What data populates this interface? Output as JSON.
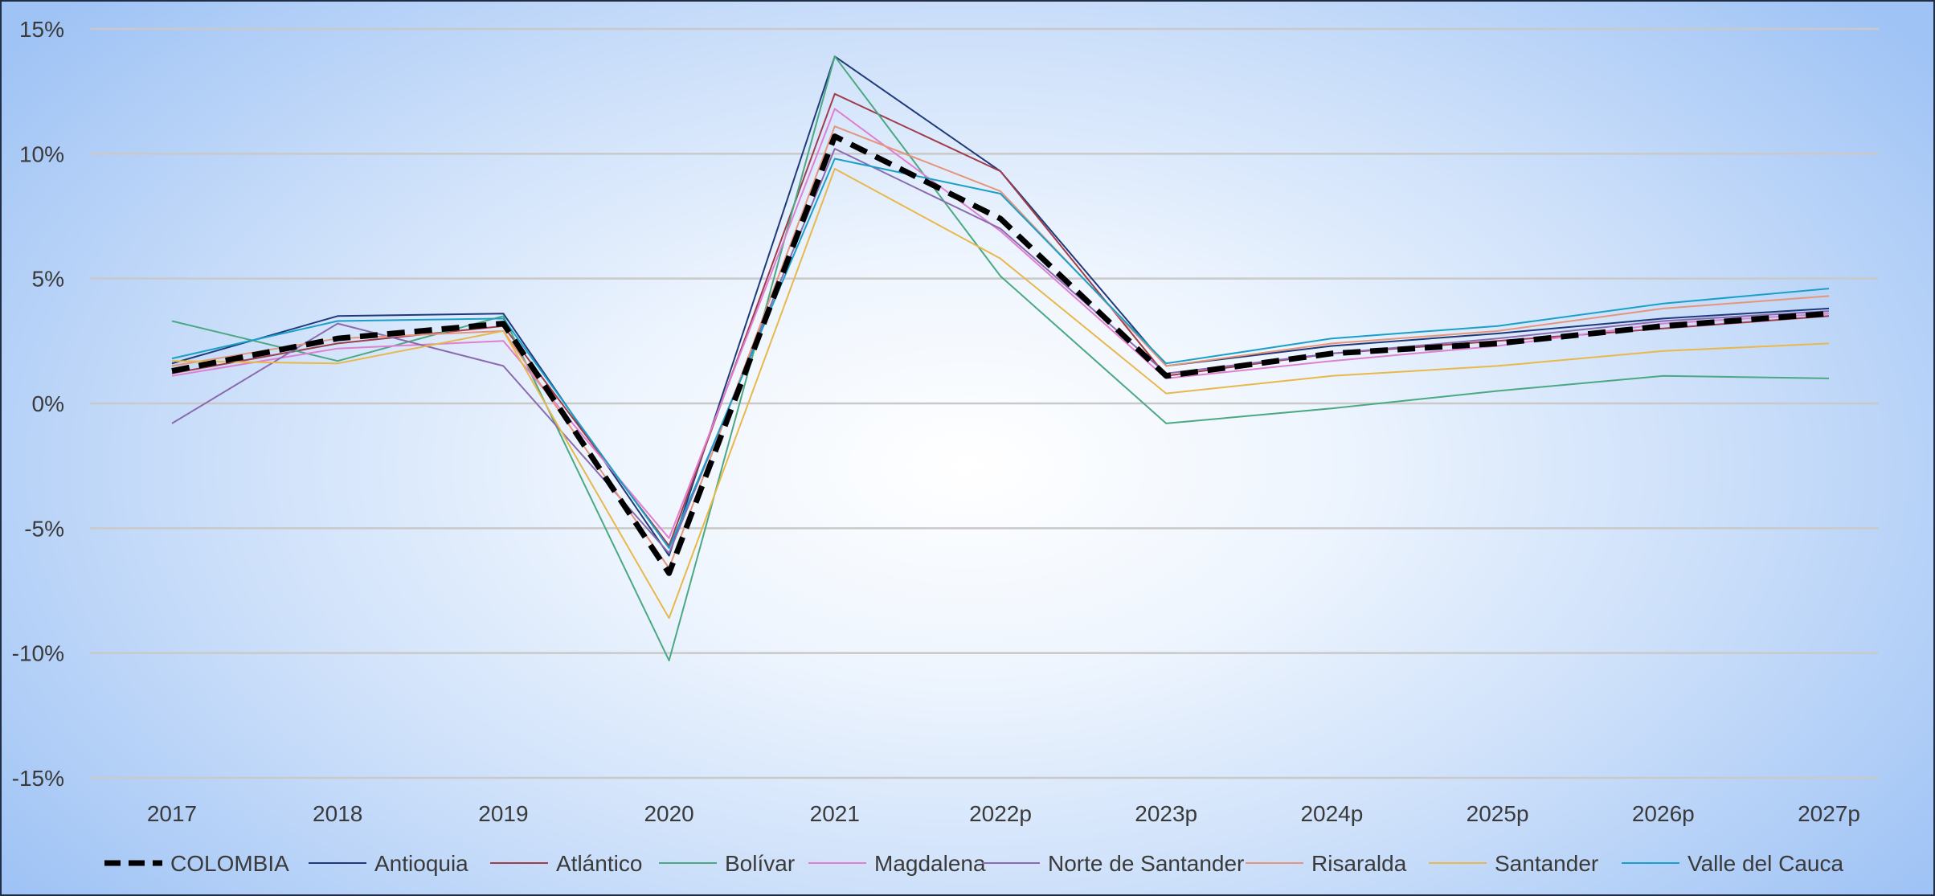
{
  "chart_data": {
    "type": "line",
    "title": "",
    "xlabel": "",
    "ylabel": "",
    "categories": [
      "2017",
      "2018",
      "2019",
      "2020",
      "2021",
      "2022p",
      "2023p",
      "2024p",
      "2025p",
      "2026p",
      "2027p"
    ],
    "yticks": [
      15,
      10,
      5,
      0,
      -5,
      -10,
      -15
    ],
    "ytick_labels": [
      "15%",
      "10%",
      "5%",
      "0%",
      "-5%",
      "-10%",
      "-15%"
    ],
    "ylim": [
      -15,
      15
    ],
    "grid": "horizontal",
    "legend_position": "bottom",
    "series": [
      {
        "name": "Antioquia",
        "color": "#1f3a7a",
        "values": [
          1.6,
          3.5,
          3.6,
          -6.1,
          13.9,
          9.3,
          1.5,
          2.3,
          2.8,
          3.4,
          3.8
        ]
      },
      {
        "name": "Atlántico",
        "color": "#a03c4b",
        "values": [
          1.2,
          2.4,
          3.1,
          -5.7,
          12.4,
          9.3,
          1.1,
          2.0,
          2.5,
          3.0,
          3.5
        ]
      },
      {
        "name": "Bolívar",
        "color": "#4aa882",
        "values": [
          3.3,
          1.7,
          3.5,
          -10.3,
          13.9,
          5.1,
          -0.8,
          -0.2,
          0.5,
          1.1,
          1.0
        ]
      },
      {
        "name": "Magdalena",
        "color": "#e07fd0",
        "values": [
          1.1,
          2.2,
          2.5,
          -5.4,
          11.8,
          6.9,
          1.0,
          1.7,
          2.3,
          3.2,
          3.6
        ]
      },
      {
        "name": "Norte de Santander",
        "color": "#8a6bb0",
        "values": [
          -0.8,
          3.2,
          1.5,
          -6.0,
          10.2,
          7.0,
          1.2,
          2.0,
          2.6,
          3.3,
          3.7
        ]
      },
      {
        "name": "Risaralda",
        "color": "#e4957a",
        "values": [
          1.5,
          2.6,
          2.9,
          -6.6,
          11.1,
          8.5,
          1.5,
          2.4,
          2.9,
          3.8,
          4.3
        ]
      },
      {
        "name": "Santander",
        "color": "#e8b84a",
        "values": [
          1.7,
          1.6,
          2.9,
          -8.6,
          9.4,
          5.8,
          0.4,
          1.1,
          1.5,
          2.1,
          2.4
        ]
      },
      {
        "name": "Valle del Cauca",
        "color": "#1aa0c8",
        "values": [
          1.8,
          3.3,
          3.4,
          -5.8,
          9.8,
          8.4,
          1.6,
          2.6,
          3.1,
          4.0,
          4.6
        ]
      },
      {
        "name": "COLOMBIA",
        "color": "#000000",
        "dashed": true,
        "values": [
          1.3,
          2.6,
          3.2,
          -6.8,
          10.7,
          7.4,
          1.1,
          2.0,
          2.4,
          3.1,
          3.6
        ]
      }
    ],
    "legend_order": [
      "COLOMBIA",
      "Antioquia",
      "Atlántico",
      "Bolívar",
      "Magdalena",
      "Norte de Santander",
      "Risaralda",
      "Santander",
      "Valle del Cauca"
    ]
  }
}
